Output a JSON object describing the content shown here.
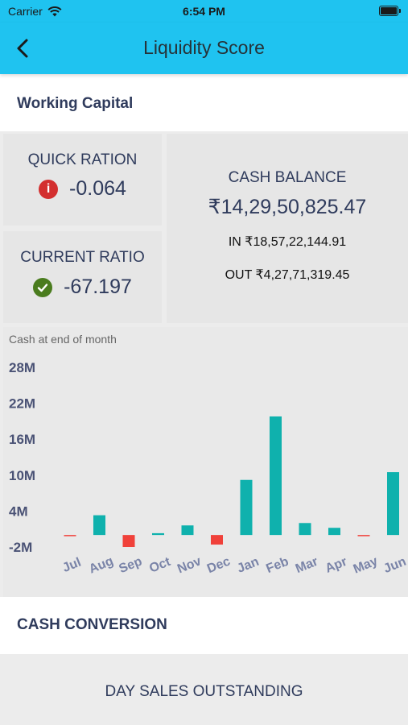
{
  "status_bar": {
    "carrier": "Carrier",
    "time": "6:54 PM"
  },
  "header": {
    "title": "Liquidity Score"
  },
  "working_capital": {
    "title": "Working Capital",
    "quick_ratio": {
      "label": "QUICK RATION",
      "value": "-0.064",
      "status_color": "#d32f2f"
    },
    "current_ratio": {
      "label": "CURRENT RATIO",
      "value": "-67.197",
      "status_color": "#4a7c1e"
    },
    "cash_balance": {
      "label": "CASH BALANCE",
      "amount": "₹14,29,50,825.47",
      "in": "IN ₹18,57,22,144.91",
      "out": "OUT ₹4,27,71,319.45"
    }
  },
  "chart_data": {
    "type": "bar",
    "title": "Cash at end of month",
    "categories": [
      "Jul",
      "Aug",
      "Sep",
      "Oct",
      "Nov",
      "Dec",
      "Jan",
      "Feb",
      "Mar",
      "Apr",
      "May",
      "Jun"
    ],
    "values": [
      -0.1,
      3.3,
      -2.0,
      0.3,
      1.6,
      -1.6,
      9.2,
      19.8,
      2.0,
      1.2,
      -0.1,
      10.5
    ],
    "yticks": [
      "28M",
      "22M",
      "16M",
      "10M",
      "4M",
      "-2M"
    ],
    "ytick_values": [
      28,
      22,
      16,
      10,
      4,
      -2
    ],
    "ylim": [
      -2,
      28
    ],
    "positive_color": "#0fb1ad",
    "negative_color": "#f0413a",
    "grid": false
  },
  "cash_conversion": {
    "title": "CASH CONVERSION",
    "dso_label": "DAY SALES OUTSTANDING"
  }
}
